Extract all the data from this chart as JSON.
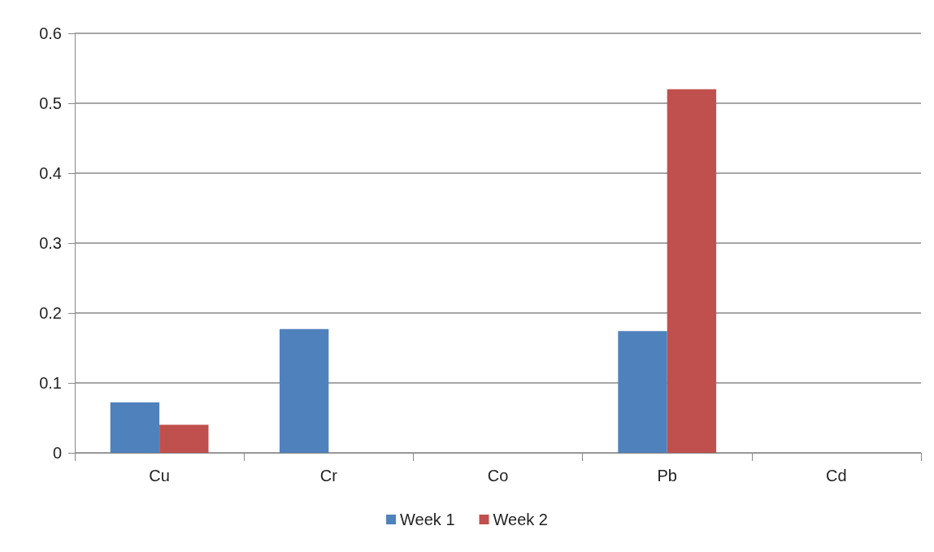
{
  "chart_data": {
    "type": "bar",
    "categories": [
      "Cu",
      "Cr",
      "Co",
      "Pb",
      "Cd"
    ],
    "series": [
      {
        "name": "Week 1",
        "color": "#4f81bd",
        "values": [
          0.072,
          0.177,
          0,
          0.174,
          0
        ]
      },
      {
        "name": "Week 2",
        "color": "#c0504d",
        "values": [
          0.04,
          0,
          0,
          0.52,
          0
        ]
      }
    ],
    "ylim": [
      0,
      0.6
    ],
    "yticks": [
      0,
      0.1,
      0.2,
      0.3,
      0.4,
      0.5,
      0.6
    ],
    "grid": "y",
    "legend": "bottom"
  }
}
